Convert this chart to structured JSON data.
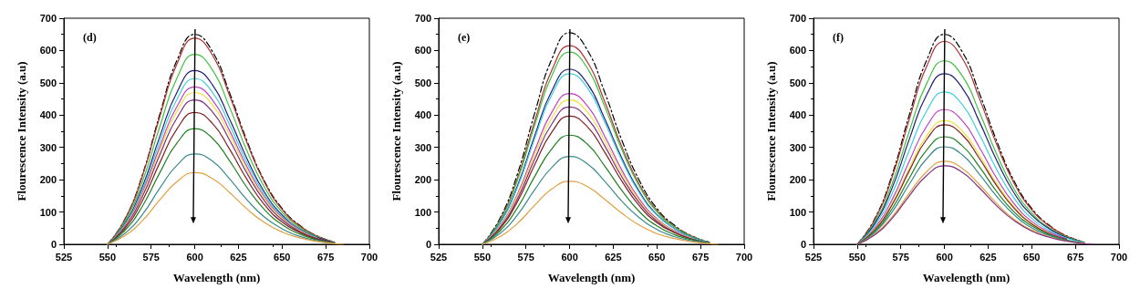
{
  "chart_data": [
    {
      "type": "line",
      "title": "(d)",
      "xlabel": "Wavelength (nm)",
      "ylabel": "Flourescence Intensity (a.u)",
      "xlim": [
        525,
        700
      ],
      "xticks": [
        525,
        550,
        575,
        600,
        625,
        650,
        675,
        700
      ],
      "ylim": [
        0,
        700
      ],
      "yticks": [
        0,
        100,
        200,
        300,
        400,
        500,
        600,
        700
      ],
      "marker": "none",
      "x": [
        550,
        560,
        570,
        580,
        590,
        600,
        610,
        620,
        630,
        640,
        650,
        660,
        670,
        680
      ],
      "series": [
        {
          "color": "#000000",
          "line_style": "dashed",
          "values": [
            0,
            78,
            215,
            403,
            572,
            650,
            598,
            468,
            319,
            195,
            111,
            59,
            26,
            7
          ]
        },
        {
          "color": "#b03030",
          "values": [
            0,
            77,
            211,
            396,
            561,
            638,
            587,
            459,
            313,
            191,
            108,
            57,
            26,
            6
          ]
        },
        {
          "color": "#40c040",
          "values": [
            0,
            71,
            194,
            365,
            517,
            588,
            541,
            423,
            288,
            176,
            100,
            53,
            24,
            6
          ]
        },
        {
          "color": "#20207a",
          "values": [
            0,
            65,
            178,
            334,
            473,
            538,
            495,
            387,
            264,
            161,
            91,
            48,
            22,
            5
          ]
        },
        {
          "color": "#40d0e0",
          "values": [
            0,
            62,
            169,
            318,
            451,
            513,
            472,
            369,
            251,
            154,
            87,
            46,
            21,
            null
          ]
        },
        {
          "color": "#c040c0",
          "values": [
            0,
            58,
            161,
            302,
            429,
            487,
            448,
            351,
            239,
            146,
            83,
            44,
            19,
            null
          ]
        },
        {
          "color": "#f0e040",
          "values": [
            0,
            56,
            155,
            291,
            414,
            470,
            432,
            338,
            230,
            141,
            80,
            42,
            19,
            null
          ]
        },
        {
          "color": "#803080",
          "values": [
            0,
            54,
            148,
            277,
            393,
            447,
            411,
            322,
            219,
            134,
            76,
            40,
            18,
            4
          ]
        },
        {
          "color": "#802020",
          "values": [
            0,
            49,
            135,
            253,
            359,
            408,
            375,
            294,
            200,
            122,
            69,
            37,
            16,
            4
          ]
        },
        {
          "color": "#208020",
          "values": [
            0,
            43,
            118,
            222,
            315,
            358,
            329,
            258,
            175,
            107,
            61,
            32,
            14,
            4
          ]
        },
        {
          "color": "#3a8a8a",
          "values": [
            0,
            34,
            92,
            174,
            246,
            280,
            258,
            202,
            137,
            84,
            48,
            25,
            11,
            3
          ]
        },
        {
          "color": "#e0a040",
          "x": [
            550,
            560,
            570,
            580,
            590,
            600,
            610,
            620,
            630,
            640,
            650,
            660,
            670,
            680,
            685
          ],
          "values": [
            0,
            27,
            73,
            138,
            195,
            222,
            204,
            160,
            109,
            67,
            38,
            20,
            9,
            2,
            0
          ]
        }
      ]
    },
    {
      "type": "line",
      "title": "(e)",
      "xlabel": "Wavelength (nm)",
      "ylabel": "Flourescence Intensity (a.u)",
      "xlim": [
        525,
        700
      ],
      "xticks": [
        525,
        550,
        575,
        600,
        625,
        650,
        675,
        700
      ],
      "ylim": [
        0,
        700
      ],
      "yticks": [
        0,
        100,
        200,
        300,
        400,
        500,
        600,
        700
      ],
      "marker": "none",
      "x": [
        550,
        560,
        570,
        580,
        590,
        600,
        610,
        620,
        630,
        640,
        650,
        660,
        670,
        680
      ],
      "series": [
        {
          "color": "#000000",
          "line_style": "dashed",
          "values": [
            0,
            79,
            216,
            406,
            576,
            655,
            603,
            472,
            321,
            197,
            111,
            59,
            26,
            7
          ]
        },
        {
          "color": "#b03030",
          "values": [
            0,
            74,
            203,
            381,
            541,
            615,
            566,
            443,
            301,
            185,
            105,
            55,
            25,
            6
          ]
        },
        {
          "color": "#40c040",
          "values": [
            0,
            71,
            196,
            369,
            524,
            595,
            547,
            428,
            292,
            179,
            101,
            54,
            24,
            6
          ]
        },
        {
          "color": "#20207a",
          "values": [
            0,
            65,
            179,
            336,
            477,
            542,
            499,
            390,
            266,
            163,
            92,
            49,
            22,
            5
          ]
        },
        {
          "color": "#40d0e0",
          "values": [
            0,
            63,
            174,
            327,
            465,
            528,
            486,
            380,
            259,
            158,
            90,
            48,
            21,
            5
          ]
        },
        {
          "color": "#c040c0",
          "values": [
            0,
            56,
            154,
            290,
            411,
            467,
            430,
            336,
            229,
            140,
            79,
            42,
            19,
            null
          ]
        },
        {
          "color": "#f0e040",
          "values": [
            0,
            54,
            148,
            277,
            393,
            447,
            411,
            322,
            219,
            134,
            76,
            40,
            18,
            null
          ]
        },
        {
          "color": "#803080",
          "values": [
            0,
            51,
            140,
            264,
            374,
            425,
            391,
            306,
            208,
            128,
            72,
            38,
            17,
            4
          ]
        },
        {
          "color": "#802020",
          "values": [
            0,
            48,
            131,
            246,
            349,
            397,
            365,
            286,
            195,
            119,
            67,
            36,
            16,
            4
          ]
        },
        {
          "color": "#208020",
          "values": [
            0,
            41,
            112,
            210,
            297,
            338,
            311,
            243,
            166,
            101,
            57,
            30,
            14,
            3
          ]
        },
        {
          "color": "#3a8a8a",
          "values": [
            0,
            33,
            90,
            169,
            239,
            272,
            250,
            196,
            133,
            82,
            46,
            24,
            11,
            3
          ]
        },
        {
          "color": "#e0a040",
          "x": [
            550,
            560,
            570,
            580,
            590,
            600,
            610,
            620,
            630,
            640,
            650,
            660,
            670,
            680,
            685
          ],
          "values": [
            0,
            23,
            64,
            121,
            172,
            195,
            179,
            140,
            96,
            59,
            33,
            18,
            8,
            2,
            0
          ]
        }
      ]
    },
    {
      "type": "line",
      "title": "(f)",
      "xlabel": "Wavelength (nm)",
      "ylabel": "Flourescence Intensity (a.u)",
      "xlim": [
        525,
        700
      ],
      "xticks": [
        525,
        550,
        575,
        600,
        625,
        650,
        675,
        700
      ],
      "ylim": [
        0,
        700
      ],
      "yticks": [
        0,
        100,
        200,
        300,
        400,
        500,
        600,
        700
      ],
      "marker": "none",
      "x": [
        550,
        560,
        570,
        580,
        590,
        600,
        610,
        620,
        630,
        640,
        650,
        660,
        670,
        680
      ],
      "series": [
        {
          "color": "#000000",
          "line_style": "dashed",
          "values": [
            0,
            78,
            215,
            403,
            572,
            650,
            598,
            468,
            319,
            195,
            111,
            59,
            26,
            7
          ]
        },
        {
          "color": "#b03030",
          "values": [
            0,
            75,
            207,
            389,
            553,
            628,
            578,
            452,
            308,
            188,
            107,
            57,
            25,
            6
          ]
        },
        {
          "color": "#40c040",
          "values": [
            0,
            68,
            187,
            352,
            500,
            568,
            523,
            409,
            278,
            170,
            97,
            51,
            23,
            6
          ]
        },
        {
          "color": "#20207a",
          "values": [
            0,
            63,
            174,
            327,
            465,
            528,
            486,
            380,
            259,
            158,
            90,
            48,
            21,
            5
          ]
        },
        {
          "color": "#40d0e0",
          "values": [
            0,
            57,
            156,
            293,
            415,
            472,
            434,
            340,
            231,
            142,
            80,
            42,
            19,
            5
          ]
        },
        {
          "color": "#c040c0",
          "values": [
            0,
            50,
            138,
            259,
            367,
            417,
            384,
            300,
            204,
            125,
            71,
            38,
            17,
            null
          ]
        },
        {
          "color": "#f0e040",
          "values": [
            0,
            46,
            126,
            237,
            337,
            383,
            352,
            276,
            188,
            115,
            65,
            34,
            null,
            null
          ]
        },
        {
          "color": "#802020",
          "values": [
            0,
            44,
            122,
            229,
            326,
            370,
            340,
            266,
            181,
            111,
            63,
            33,
            15,
            null
          ]
        },
        {
          "color": "#208020",
          "values": [
            0,
            40,
            110,
            206,
            293,
            333,
            306,
            240,
            163,
            100,
            57,
            30,
            13,
            3
          ]
        },
        {
          "color": "#3a8a8a",
          "values": [
            0,
            36,
            100,
            187,
            266,
            302,
            278,
            217,
            148,
            91,
            51,
            27,
            12,
            3
          ]
        },
        {
          "color": "#e0a040",
          "values": [
            0,
            31,
            85,
            159,
            226,
            257,
            236,
            185,
            126,
            77,
            44,
            23,
            10,
            3
          ]
        },
        {
          "color": "#803080",
          "x": [
            550,
            560,
            570,
            580,
            590,
            600,
            610,
            620,
            630,
            640,
            650,
            660,
            670,
            680,
            685
          ],
          "values": [
            0,
            29,
            80,
            151,
            214,
            243,
            224,
            175,
            119,
            73,
            41,
            22,
            10,
            2,
            0
          ]
        }
      ]
    }
  ]
}
